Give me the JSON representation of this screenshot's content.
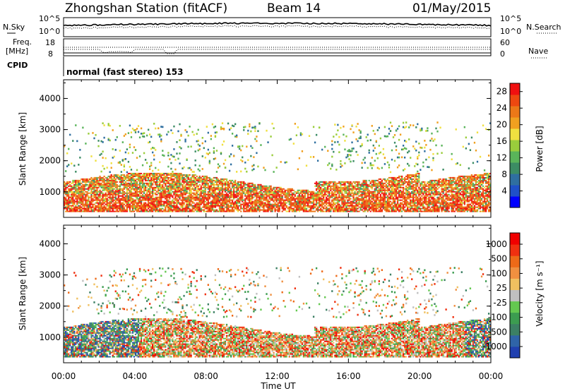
{
  "header": {
    "station": "Zhongshan Station (fitACF)",
    "beam": "Beam 14",
    "date": "01/May/2015"
  },
  "summary": {
    "nsky_label": "N.Sky",
    "nsky_ticks": [
      "10^5",
      "10^0"
    ],
    "nsearch_label": "N.Search",
    "nsearch_ticks": [
      "10^5",
      "10^0"
    ],
    "freq_label_1": "Freq.",
    "freq_label_2": "[MHz]",
    "freq_ticks": [
      "18",
      "8"
    ],
    "nave_label": "Nave",
    "nave_ticks": [
      "60",
      "0"
    ],
    "cpid_label": "CPID",
    "cpid_text": "normal (fast stereo) 153"
  },
  "chart_data": [
    {
      "type": "heatmap",
      "name": "power",
      "ylabel": "Slant Range [km]",
      "yticks": [
        1000,
        2000,
        3000,
        4000
      ],
      "ylim": [
        180,
        4600
      ],
      "xlabel": "Time UT",
      "xticks": [
        "00:00",
        "04:00",
        "08:00",
        "12:00",
        "16:00",
        "20:00",
        "00:00"
      ],
      "xlim_hours": [
        0,
        24
      ],
      "colorbar": {
        "label": "Power [dB]",
        "ticks": [
          4,
          8,
          12,
          16,
          20,
          24,
          28
        ],
        "range": [
          0,
          30
        ],
        "colors": [
          "#0000ff",
          "#1f50c8",
          "#2f6fa0",
          "#3c8c64",
          "#5ab45a",
          "#9acd3c",
          "#f0e040",
          "#f0a020",
          "#ec7818",
          "#ee4810",
          "#f01010"
        ]
      }
    },
    {
      "type": "heatmap",
      "name": "velocity",
      "ylabel": "Slant Range [km]",
      "yticks": [
        1000,
        2000,
        3000,
        4000
      ],
      "ylim": [
        180,
        4600
      ],
      "xlabel": "Time UT",
      "xticks": [
        "00:00",
        "04:00",
        "08:00",
        "12:00",
        "16:00",
        "20:00",
        "00:00"
      ],
      "xlim_hours": [
        0,
        24
      ],
      "colorbar": {
        "label": "Velocity [m s⁻¹]",
        "ticks": [
          "1000",
          "500",
          "100",
          "25",
          "-25",
          "-100",
          "-500",
          "-1000"
        ],
        "colors": [
          "#2040b0",
          "#2f64a8",
          "#3c8064",
          "#3c9c50",
          "#64c850",
          "#c0c0c0",
          "#f0c060",
          "#f09040",
          "#ee6a18",
          "#f03010",
          "#f00000"
        ]
      }
    }
  ]
}
